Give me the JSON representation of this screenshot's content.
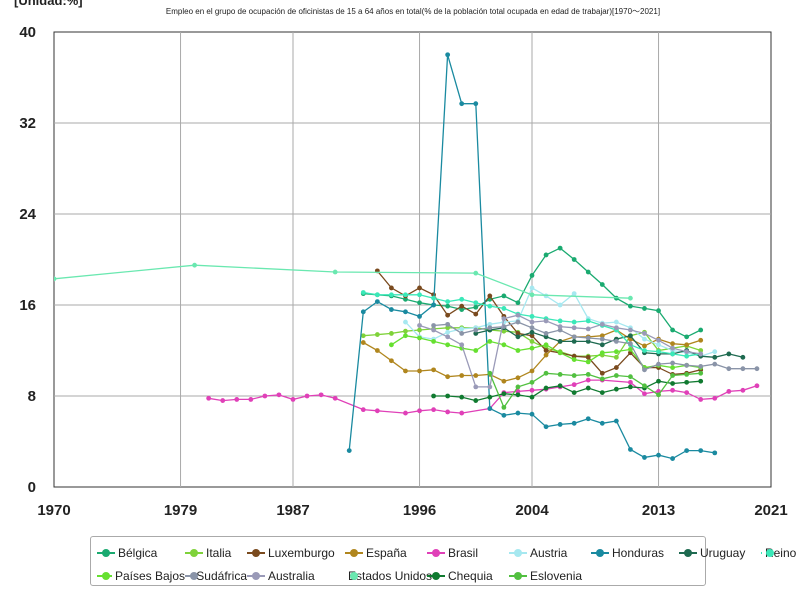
{
  "header": {
    "unit": "[Unidad:%]",
    "title": "Empleo en el grupo de ocupación de oficinistas de 15 a 64 años en total(% de la población total ocupada en edad de trabajar)[1970～2021]"
  },
  "chart_data": {
    "type": "line",
    "title": "Empleo en el grupo de ocupación de oficinistas de 15 a 64 años en total(% de la población total ocupada en edad de trabajar)[1970～2021]",
    "xlabel": "",
    "ylabel": "",
    "xlim": [
      1970,
      2021
    ],
    "ylim": [
      0,
      40
    ],
    "xticks": [
      1970,
      1979,
      1987,
      1996,
      2004,
      2013,
      2021
    ],
    "yticks": [
      0,
      8,
      16,
      24,
      32,
      40
    ],
    "grid": true,
    "legend_position": "bottom",
    "series": [
      {
        "name": "Bélgica",
        "color": "#1aaa70",
        "x": [
          1992,
          1993,
          1994,
          1995,
          1996,
          1997,
          1998,
          1999,
          2000,
          2001,
          2002,
          2003,
          2004,
          2005,
          2006,
          2007,
          2008,
          2009,
          2010,
          2011,
          2012,
          2013,
          2014,
          2015,
          2016
        ],
        "y": [
          17.0,
          16.9,
          16.8,
          16.5,
          16.2,
          16.0,
          15.9,
          15.6,
          15.8,
          16.5,
          16.8,
          16.2,
          18.6,
          20.4,
          21.0,
          20.0,
          18.9,
          17.8,
          16.6,
          15.9,
          15.7,
          15.5,
          13.8,
          13.2,
          13.8
        ]
      },
      {
        "name": "Italia",
        "color": "#7fd23a",
        "x": [
          1992,
          1993,
          1994,
          1995,
          1996,
          1997,
          1998,
          1999,
          2000,
          2001,
          2002,
          2003,
          2004,
          2005,
          2006,
          2007,
          2008,
          2009,
          2010,
          2011,
          2012,
          2013,
          2014,
          2015,
          2016
        ],
        "y": [
          13.3,
          13.4,
          13.5,
          13.7,
          13.8,
          13.9,
          14.0,
          14.0,
          14.0,
          13.8,
          13.7,
          13.6,
          12.8,
          12.2,
          11.9,
          11.5,
          11.5,
          11.6,
          11.4,
          13.3,
          13.6,
          12.0,
          12.2,
          12.4,
          12.0
        ]
      },
      {
        "name": "Luxemburgo",
        "color": "#7a4a1e",
        "x": [
          1993,
          1994,
          1995,
          1996,
          1997,
          1998,
          1999,
          2000,
          2001,
          2002,
          2003,
          2004,
          2005,
          2006,
          2007,
          2008,
          2009,
          2010,
          2011,
          2012,
          2013,
          2014,
          2015,
          2016
        ],
        "y": [
          19.0,
          17.5,
          16.8,
          17.5,
          16.9,
          15.1,
          15.9,
          15.2,
          16.8,
          15.0,
          13.5,
          13.3,
          12.0,
          11.8,
          11.5,
          11.4,
          10.0,
          10.5,
          11.8,
          10.5,
          10.5,
          9.9,
          10.0,
          10.3
        ]
      },
      {
        "name": "España",
        "color": "#b0861e",
        "x": [
          1992,
          1993,
          1994,
          1995,
          1996,
          1997,
          1998,
          1999,
          2000,
          2001,
          2002,
          2003,
          2004,
          2005,
          2006,
          2007,
          2008,
          2009,
          2010,
          2011,
          2012,
          2013,
          2014,
          2015,
          2016
        ],
        "y": [
          12.7,
          12.0,
          11.1,
          10.2,
          10.2,
          10.3,
          9.7,
          9.8,
          9.8,
          9.9,
          9.3,
          9.6,
          10.2,
          11.6,
          12.8,
          13.2,
          13.2,
          13.3,
          13.8,
          13.0,
          12.4,
          13.0,
          12.6,
          12.5,
          12.9
        ]
      },
      {
        "name": "Brasil",
        "color": "#e040b8",
        "x": [
          1981,
          1982,
          1983,
          1984,
          1985,
          1986,
          1987,
          1988,
          1989,
          1990,
          1992,
          1993,
          1995,
          1996,
          1997,
          1998,
          1999,
          2001,
          2002,
          2003,
          2004,
          2005,
          2006,
          2007,
          2008,
          2009,
          2011,
          2012,
          2013,
          2014,
          2015,
          2016,
          2017,
          2018,
          2019,
          2020
        ],
        "y": [
          7.8,
          7.6,
          7.7,
          7.7,
          8.0,
          8.1,
          7.7,
          8.0,
          8.1,
          7.8,
          6.8,
          6.7,
          6.5,
          6.7,
          6.8,
          6.6,
          6.5,
          6.9,
          8.3,
          8.4,
          8.5,
          8.6,
          8.8,
          9.0,
          9.4,
          9.4,
          9.2,
          8.2,
          8.4,
          8.5,
          8.3,
          7.7,
          7.8,
          8.4,
          8.5,
          8.9
        ]
      },
      {
        "name": "Austria",
        "color": "#a6e8f0",
        "x": [
          1995,
          1996,
          1997,
          1998,
          1999,
          2000,
          2001,
          2002,
          2003,
          2004,
          2005,
          2006,
          2007,
          2008,
          2009,
          2010,
          2011,
          2012,
          2013,
          2014,
          2015,
          2016,
          2017
        ],
        "y": [
          14.5,
          13.2,
          13.0,
          13.6,
          13.9,
          14.0,
          14.3,
          14.5,
          14.6,
          17.5,
          16.8,
          16.0,
          17.0,
          14.8,
          14.4,
          14.5,
          14.0,
          13.0,
          12.5,
          12.0,
          11.8,
          11.5,
          11.9
        ]
      },
      {
        "name": "Honduras",
        "color": "#1a8aa0",
        "x": [
          1991,
          1992,
          1993,
          1994,
          1995,
          1996,
          1997,
          1998,
          1999,
          2000,
          2001,
          2002,
          2003,
          2004,
          2005,
          2006,
          2007,
          2008,
          2009,
          2010,
          2011,
          2012,
          2013,
          2014,
          2015,
          2016,
          2017
        ],
        "y": [
          3.2,
          15.4,
          16.3,
          15.6,
          15.4,
          15.0,
          16.0,
          38.0,
          33.7,
          33.7,
          6.9,
          6.3,
          6.5,
          6.4,
          5.3,
          5.5,
          5.6,
          6.0,
          5.6,
          5.8,
          3.3,
          2.6,
          2.8,
          2.5,
          3.2,
          3.2,
          3.0
        ]
      },
      {
        "name": "Uruguay",
        "color": "#1e6a50",
        "x": [
          2000,
          2001,
          2002,
          2003,
          2004,
          2005,
          2006,
          2007,
          2008,
          2009,
          2010,
          2011,
          2012,
          2013,
          2014,
          2015,
          2016,
          2017,
          2018,
          2019
        ],
        "y": [
          13.5,
          13.8,
          14.0,
          13.2,
          13.6,
          13.2,
          12.8,
          12.8,
          12.8,
          12.5,
          13.0,
          13.3,
          11.8,
          11.7,
          11.7,
          12.0,
          11.5,
          11.4,
          11.7,
          11.4
        ]
      },
      {
        "name": "Reino Unido",
        "color": "#3ae8b8",
        "x": [
          1992,
          1993,
          1994,
          1995,
          1996,
          1997,
          1998,
          1999,
          2000,
          2001,
          2002,
          2003,
          2004,
          2005,
          2006,
          2007,
          2008,
          2009,
          2010,
          2011,
          2012,
          2013,
          2014,
          2015,
          2016
        ],
        "y": [
          17.1,
          16.9,
          16.9,
          16.9,
          16.9,
          16.6,
          16.3,
          16.5,
          16.2,
          15.9,
          15.7,
          15.2,
          15.0,
          14.8,
          14.6,
          14.5,
          14.6,
          14.2,
          13.8,
          12.5,
          12.0,
          11.9,
          11.7,
          11.5,
          11.7
        ]
      },
      {
        "name": "Países Bajos",
        "color": "#66e030",
        "x": [
          1994,
          1995,
          1996,
          1997,
          1998,
          1999,
          2000,
          2001,
          2002,
          2003,
          2004,
          2005,
          2006,
          2007,
          2008,
          2009,
          2010,
          2011,
          2012,
          2013,
          2014,
          2015,
          2016
        ],
        "y": [
          12.5,
          13.3,
          13.1,
          12.8,
          12.5,
          12.2,
          12.0,
          12.8,
          12.5,
          12.0,
          12.2,
          12.5,
          11.8,
          11.2,
          11.0,
          11.8,
          11.9,
          12.1,
          10.5,
          10.7,
          10.5,
          10.7,
          10.5
        ]
      },
      {
        "name": "Sudáfrica",
        "color": "#8a94a8",
        "x": [
          1997,
          1998,
          1999,
          2000,
          2001,
          2002,
          2003,
          2004,
          2005,
          2006,
          2007,
          2008,
          2009,
          2010,
          2011,
          2012,
          2013,
          2014,
          2015,
          2016,
          2017,
          2018,
          2019,
          2020
        ],
        "y": [
          14.2,
          14.3,
          13.5,
          13.8,
          14.0,
          14.1,
          14.5,
          14.0,
          13.5,
          13.8,
          13.2,
          13.1,
          13.0,
          12.8,
          12.6,
          10.3,
          10.8,
          10.9,
          10.7,
          10.6,
          10.8,
          10.4,
          10.4,
          10.4
        ]
      },
      {
        "name": "Australia",
        "color": "#9a9ab8",
        "x": [
          1996,
          1997,
          1998,
          1999,
          2000,
          2001,
          2002,
          2003,
          2004,
          2005,
          2006,
          2007,
          2008,
          2009,
          2010,
          2011,
          2012,
          2013,
          2014,
          2015,
          2016
        ],
        "y": [
          14.2,
          13.8,
          13.2,
          12.5,
          8.8,
          8.8,
          14.8,
          15.1,
          14.5,
          14.6,
          14.1,
          14.0,
          13.9,
          14.3,
          14.0,
          13.8,
          13.5,
          12.9,
          12.2,
          11.9,
          11.7
        ]
      },
      {
        "name": "Estados Unidos",
        "color": "#6ae8b0",
        "x": [
          1970,
          1980,
          1990,
          2000,
          2004,
          2011
        ],
        "y": [
          18.3,
          19.5,
          18.9,
          18.8,
          16.9,
          16.6
        ]
      },
      {
        "name": "Chequia",
        "color": "#107a30",
        "x": [
          1997,
          1998,
          1999,
          2000,
          2001,
          2002,
          2003,
          2004,
          2005,
          2006,
          2007,
          2008,
          2009,
          2010,
          2011,
          2012,
          2013,
          2014,
          2015,
          2016
        ],
        "y": [
          8.0,
          8.0,
          7.9,
          7.6,
          7.9,
          8.2,
          8.1,
          7.9,
          8.7,
          8.9,
          8.3,
          8.7,
          8.3,
          8.6,
          8.8,
          8.7,
          9.3,
          9.1,
          9.2,
          9.3
        ]
      },
      {
        "name": "Eslovenia",
        "color": "#52c040",
        "x": [
          2001,
          2002,
          2003,
          2004,
          2005,
          2006,
          2007,
          2008,
          2009,
          2010,
          2011,
          2012,
          2013,
          2014,
          2015,
          2016
        ],
        "y": [
          10.0,
          7.0,
          8.8,
          9.2,
          10.0,
          9.9,
          9.8,
          9.9,
          9.5,
          9.8,
          9.7,
          8.9,
          8.1,
          9.8,
          9.9,
          10.0
        ]
      }
    ]
  }
}
